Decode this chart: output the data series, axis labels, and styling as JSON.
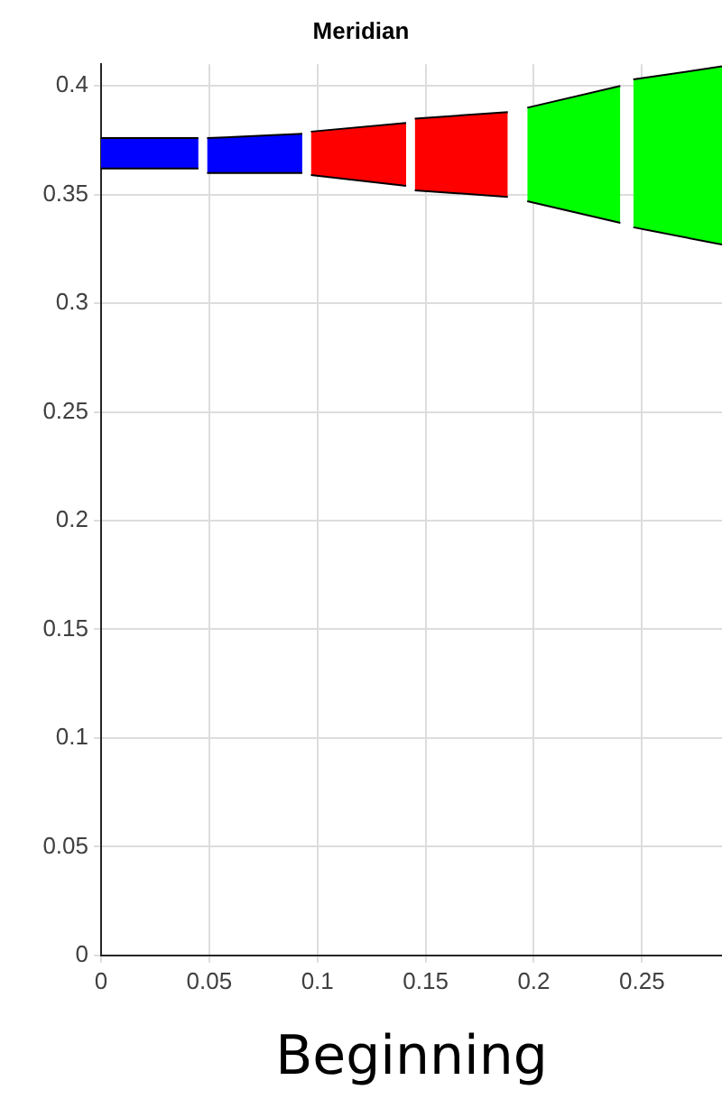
{
  "chart_data": {
    "type": "area",
    "title": "Meridian",
    "xlabel": "Beginning",
    "xlim": [
      0,
      0.287
    ],
    "xticks": [
      0,
      0.05,
      0.1,
      0.15,
      0.2,
      0.25
    ],
    "ylim": [
      0,
      0.41
    ],
    "yticks": [
      0,
      0.05,
      0.1,
      0.15,
      0.2,
      0.25,
      0.3,
      0.35,
      0.4
    ],
    "grid": true,
    "series": [
      {
        "type": "line",
        "color": "#000000",
        "x": [
          0,
          0.045
        ],
        "values": [
          0.362,
          0.362
        ]
      },
      {
        "color": "#0000ff",
        "x": [
          0,
          0.045
        ],
        "values": [
          0.376,
          0.376
        ]
      },
      {
        "type": "line",
        "color": "#000000",
        "x": [
          0.049,
          0.093
        ],
        "values": [
          0.36,
          0.36
        ]
      },
      {
        "color": "#0000ff",
        "x": [
          0.049,
          0.093
        ],
        "values": [
          0.376,
          0.378
        ]
      },
      {
        "type": "line",
        "color": "#000000",
        "x": [
          0.097,
          0.141
        ],
        "values": [
          0.359,
          0.354
        ]
      },
      {
        "color": "#ff0000",
        "x": [
          0.097,
          0.141
        ],
        "values": [
          0.379,
          0.383
        ]
      },
      {
        "type": "line",
        "color": "#000000",
        "x": [
          0.145,
          0.188
        ],
        "values": [
          0.352,
          0.349
        ]
      },
      {
        "color": "#ff0000",
        "x": [
          0.145,
          0.188
        ],
        "values": [
          0.385,
          0.388
        ]
      },
      {
        "type": "line",
        "color": "#000000",
        "x": [
          0.197,
          0.24
        ],
        "values": [
          0.347,
          0.337
        ]
      },
      {
        "color": "#00ff00",
        "x": [
          0.197,
          0.24
        ],
        "values": [
          0.39,
          0.4
        ]
      },
      {
        "type": "line",
        "color": "#000000",
        "x": [
          0.246,
          0.287
        ],
        "values": [
          0.335,
          0.327
        ]
      },
      {
        "color": "#00ff00",
        "x": [
          0.246,
          0.287
        ],
        "values": [
          0.403,
          0.409
        ]
      }
    ]
  }
}
